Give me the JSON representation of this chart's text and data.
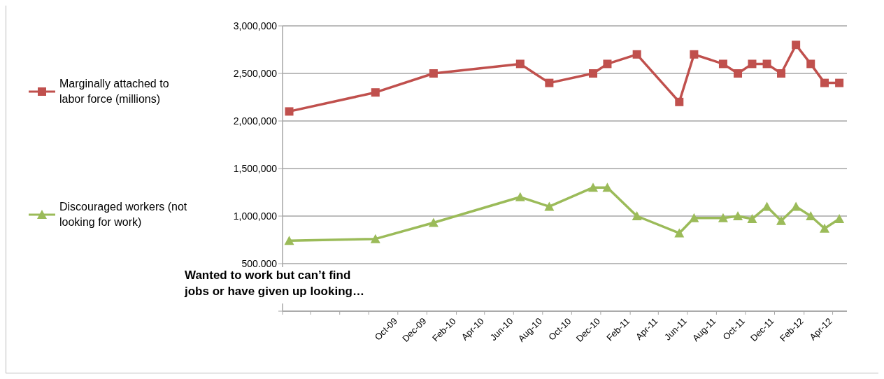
{
  "chart_data": {
    "type": "line",
    "annotations": [
      "Wanted to work but can’t find jobs or have given up looking…"
    ],
    "x": [
      "2009-02-15",
      "2009-08-15",
      "2009-12-15",
      "2010-06-15",
      "2010-08-15",
      "2010-11-15",
      "2010-12-15",
      "2011-02-15",
      "2011-05-15",
      "2011-06-15",
      "2011-08-15",
      "2011-09-15",
      "2011-10-15",
      "2011-11-15",
      "2011-12-15",
      "2012-01-15",
      "2012-02-15",
      "2012-03-15",
      "2012-04-15"
    ],
    "series": [
      {
        "name": "Marginally attached to labor force (millions)",
        "color": "#c0504d",
        "marker": "square",
        "values": [
          2100000,
          2300000,
          2500000,
          2600000,
          2400000,
          2500000,
          2600000,
          2700000,
          2200000,
          2700000,
          2600000,
          2500000,
          2600000,
          2600000,
          2500000,
          2800000,
          2600000,
          2400000,
          2400000
        ]
      },
      {
        "name": "Discouraged workers (not looking for work)",
        "color": "#9bbb59",
        "marker": "triangle",
        "values": [
          740000,
          760000,
          930000,
          1200000,
          1100000,
          1300000,
          1300000,
          1000000,
          820000,
          980000,
          980000,
          1000000,
          970000,
          1100000,
          950000,
          1100000,
          1000000,
          870000,
          970000
        ]
      }
    ],
    "xlim": [
      "2009-02",
      "2012-05"
    ],
    "xticks": [
      {
        "value": "2009-02",
        "label": null
      },
      {
        "value": "2009-04",
        "label": null
      },
      {
        "value": "2009-06",
        "label": null
      },
      {
        "value": "2009-08",
        "label": null
      },
      {
        "value": "2009-10",
        "label": "Oct-09"
      },
      {
        "value": "2009-12",
        "label": "Dec-09"
      },
      {
        "value": "2010-02",
        "label": "Feb-10"
      },
      {
        "value": "2010-04",
        "label": "Apr-10"
      },
      {
        "value": "2010-06",
        "label": "Jun-10"
      },
      {
        "value": "2010-08",
        "label": "Aug-10"
      },
      {
        "value": "2010-10",
        "label": "Oct-10"
      },
      {
        "value": "2010-12",
        "label": "Dec-10"
      },
      {
        "value": "2011-02",
        "label": "Feb-11"
      },
      {
        "value": "2011-04",
        "label": "Apr-11"
      },
      {
        "value": "2011-06",
        "label": "Jun-11"
      },
      {
        "value": "2011-08",
        "label": "Aug-11"
      },
      {
        "value": "2011-10",
        "label": "Oct-11"
      },
      {
        "value": "2011-12",
        "label": "Dec-11"
      },
      {
        "value": "2012-02",
        "label": "Feb-12"
      },
      {
        "value": "2012-04",
        "label": "Apr-12"
      }
    ],
    "ylim": [
      0,
      3000000
    ],
    "yticks": [
      {
        "value": 0,
        "label": null
      },
      {
        "value": 500000,
        "label": "500,000"
      },
      {
        "value": 1000000,
        "label": "1,000,000"
      },
      {
        "value": 1500000,
        "label": "1,500,000"
      },
      {
        "value": 2000000,
        "label": "2,000,000"
      },
      {
        "value": 2500000,
        "label": "2,500,000"
      },
      {
        "value": 3000000,
        "label": "3,000,000"
      }
    ],
    "grid": "y",
    "legend": "left",
    "line_style": "solid"
  }
}
